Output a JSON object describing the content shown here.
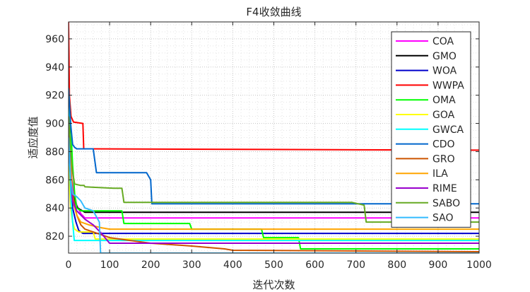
{
  "chart_data": {
    "type": "line",
    "title": "F4收敛曲线",
    "xlabel": "迭代次数",
    "ylabel": "适应度值",
    "xlim": [
      0,
      1000
    ],
    "ylim": [
      808,
      972
    ],
    "xticks": [
      0,
      100,
      200,
      300,
      400,
      500,
      600,
      700,
      800,
      900,
      1000
    ],
    "yticks": [
      820,
      840,
      860,
      880,
      900,
      920,
      940,
      960
    ],
    "grid": "on (major and minor, dotted)",
    "legend_position": "top-right",
    "series": [
      {
        "name": "COA",
        "color": "#ff00ff",
        "x": [
          0,
          4,
          8,
          14,
          20,
          30,
          40,
          1000
        ],
        "y": [
          921,
          880,
          860,
          850,
          842,
          836,
          833,
          833
        ]
      },
      {
        "name": "GMO",
        "color": "#000000",
        "x": [
          0,
          5,
          10,
          15,
          22,
          40,
          1000
        ],
        "y": [
          922,
          865,
          850,
          845,
          840,
          837,
          837
        ]
      },
      {
        "name": "WOA",
        "color": "#0000cc",
        "x": [
          0,
          5,
          10,
          18,
          25,
          35,
          1000
        ],
        "y": [
          918,
          862,
          840,
          830,
          824,
          822,
          822
        ]
      },
      {
        "name": "WWPA",
        "color": "#ff0000",
        "x": [
          0,
          1,
          2,
          6,
          12,
          35,
          37,
          1000
        ],
        "y": [
          972,
          950,
          920,
          905,
          901,
          900,
          882,
          881
        ]
      },
      {
        "name": "OMA",
        "color": "#00ff00",
        "x": [
          0,
          5,
          10,
          15,
          20,
          30,
          130,
          135,
          295,
          300,
          470,
          475,
          560,
          565,
          1000
        ],
        "y": [
          925,
          900,
          870,
          850,
          840,
          838,
          838,
          829,
          829,
          825,
          825,
          819,
          819,
          811,
          811
        ]
      },
      {
        "name": "GOA",
        "color": "#ffff00",
        "x": [
          0,
          5,
          10,
          15,
          25,
          60,
          65,
          1000
        ],
        "y": [
          870,
          840,
          830,
          825,
          823,
          823,
          818,
          818
        ]
      },
      {
        "name": "GWCA",
        "color": "#00ffff",
        "x": [
          0,
          3,
          6,
          10,
          14,
          1000
        ],
        "y": [
          925,
          870,
          845,
          830,
          817,
          817
        ]
      },
      {
        "name": "CDO",
        "color": "#0066cc",
        "x": [
          0,
          5,
          10,
          15,
          20,
          60,
          68,
          190,
          200,
          203,
          1000
        ],
        "y": [
          925,
          900,
          885,
          883,
          882,
          882,
          865,
          865,
          860,
          843,
          843
        ]
      },
      {
        "name": "GRO",
        "color": "#cc5500",
        "x": [
          0,
          5,
          10,
          20,
          30,
          40,
          60,
          80,
          100,
          150,
          200,
          300,
          380,
          400,
          1000
        ],
        "y": [
          905,
          870,
          850,
          835,
          828,
          825,
          823,
          821,
          819,
          817,
          815,
          813,
          811,
          810,
          809
        ]
      },
      {
        "name": "ILA",
        "color": "#ffa500",
        "x": [
          0,
          5,
          10,
          20,
          30,
          50,
          80,
          100,
          1000
        ],
        "y": [
          905,
          870,
          845,
          835,
          830,
          828,
          826,
          825,
          825
        ]
      },
      {
        "name": "RIME",
        "color": "#9900cc",
        "x": [
          0,
          5,
          10,
          20,
          30,
          40,
          50,
          60,
          80,
          100,
          1000
        ],
        "y": [
          895,
          860,
          845,
          838,
          835,
          832,
          830,
          828,
          822,
          815,
          815
        ]
      },
      {
        "name": "SABO",
        "color": "#66aa22",
        "x": [
          0,
          5,
          10,
          15,
          30,
          38,
          40,
          110,
          130,
          135,
          690,
          720,
          725,
          1000
        ],
        "y": [
          905,
          880,
          865,
          857,
          856,
          856,
          855,
          854,
          854,
          844,
          844,
          842,
          830,
          830
        ]
      },
      {
        "name": "SAO",
        "color": "#33bbff",
        "x": [
          0,
          5,
          10,
          20,
          30,
          40,
          60,
          75,
          78,
          1000
        ],
        "y": [
          890,
          860,
          850,
          848,
          845,
          840,
          838,
          830,
          808,
          808
        ]
      }
    ]
  }
}
